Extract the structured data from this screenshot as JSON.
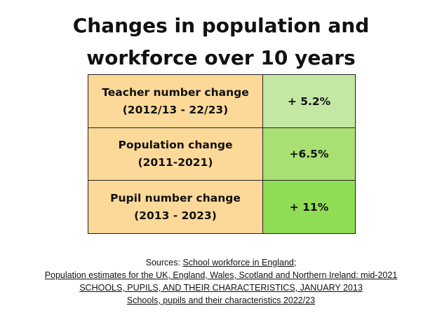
{
  "title": {
    "line1": "Changes in population and",
    "line2": "workforce over 10 years"
  },
  "rows": [
    {
      "label_line1": "Teacher number change",
      "label_line2": "(2012/13 - 22/23)",
      "value": "+ 5.2%",
      "color": "#c4e8a4"
    },
    {
      "label_line1": "Population change",
      "label_line2": "(2011-2021)",
      "value": "+6.5%",
      "color": "#a9e073"
    },
    {
      "label_line1": "Pupil number change",
      "label_line2": "(2013 - 2023)",
      "value": "+ 11%",
      "color": "#8fdc55"
    }
  ],
  "label_color": "#fcd999",
  "sources": {
    "prefix": "Sources: ",
    "link1": "School workforce in England",
    "link1_suffix": ";",
    "link2": "Population estimates for the UK, England, Wales, Scotland and Northern Ireland: mid-2021",
    "link3": "SCHOOLS, PUPILS, AND THEIR CHARACTERISTICS, JANUARY 2013",
    "link4": "Schools, pupils and their characteristics 2022/23"
  }
}
